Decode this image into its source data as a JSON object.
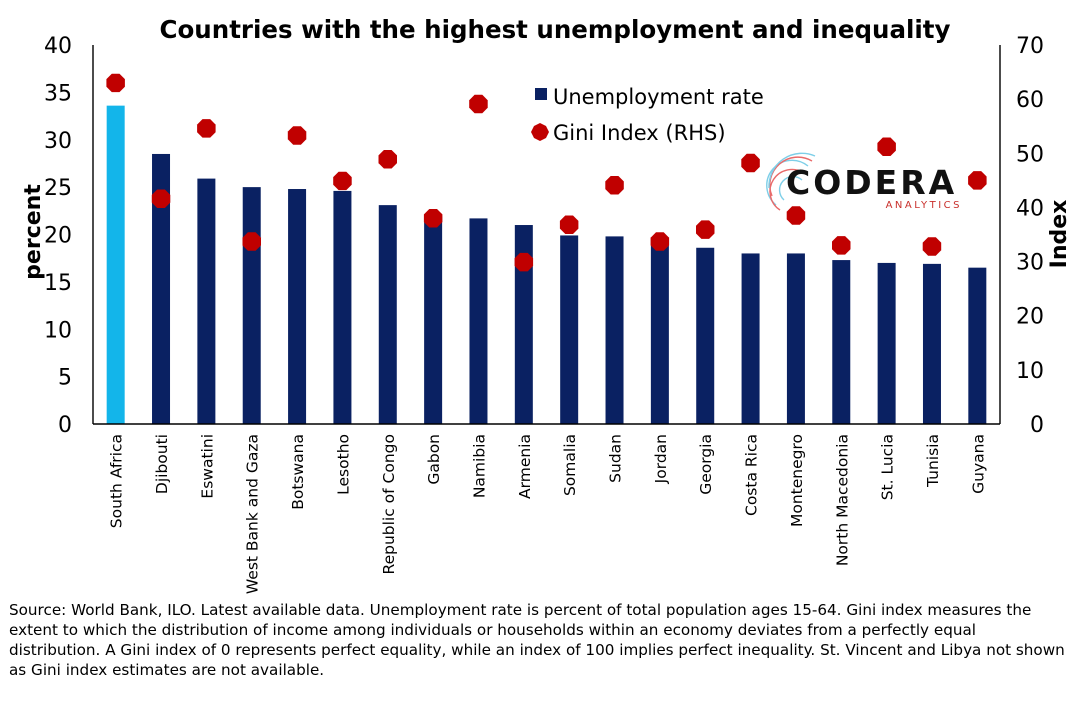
{
  "chart_data": {
    "type": "bar",
    "title": "Countries with the highest unemployment and inequality",
    "ylabel": "percent",
    "y2label": "Index",
    "ylim": [
      0,
      40
    ],
    "y2lim": [
      0,
      70
    ],
    "yticks": [
      0,
      5,
      10,
      15,
      20,
      25,
      30,
      35,
      40
    ],
    "y2ticks": [
      0,
      10,
      20,
      30,
      40,
      50,
      60,
      70
    ],
    "categories": [
      "South Africa",
      "Djibouti",
      "Eswatini",
      "West Bank and Gaza",
      "Botswana",
      "Lesotho",
      "Republic of Congo",
      "Gabon",
      "Namibia",
      "Armenia",
      "Somalia",
      "Sudan",
      "Jordan",
      "Georgia",
      "Costa Rica",
      "Montenegro",
      "North Macedonia",
      "St. Lucia",
      "Tunisia",
      "Guyana"
    ],
    "series": [
      {
        "name": "Unemployment rate",
        "kind": "bar",
        "axis": "left",
        "color": "#0a2162",
        "highlight_color": "#13b5ea",
        "highlight_index": 0,
        "values": [
          33.6,
          28.5,
          25.9,
          25.0,
          24.8,
          24.6,
          23.1,
          21.9,
          21.7,
          21.0,
          19.9,
          19.8,
          19.7,
          18.6,
          18.0,
          18.0,
          17.3,
          17.0,
          16.9,
          16.5
        ]
      },
      {
        "name": "Gini Index (RHS)",
        "kind": "scatter",
        "axis": "right",
        "color": "#c00000",
        "values": [
          63.0,
          41.6,
          54.6,
          33.7,
          53.3,
          44.9,
          48.9,
          38.0,
          59.1,
          29.9,
          36.8,
          44.1,
          33.7,
          35.9,
          48.2,
          38.5,
          33.0,
          51.2,
          32.8,
          45.0
        ]
      }
    ],
    "legend_position": "top-center",
    "grid": false
  },
  "logo": {
    "name": "CODERA",
    "tagline": "ANALYTICS"
  },
  "source_note": "Source: World Bank, ILO. Latest available data. Unemployment rate is percent of total population ages 15-64. Gini index measures the extent to which the distribution of income among individuals or households within an economy deviates from a perfectly equal distribution. A Gini index of 0 represents perfect equality, while an index of 100 implies perfect inequality. St. Vincent and Libya not shown as Gini index estimates are not available."
}
